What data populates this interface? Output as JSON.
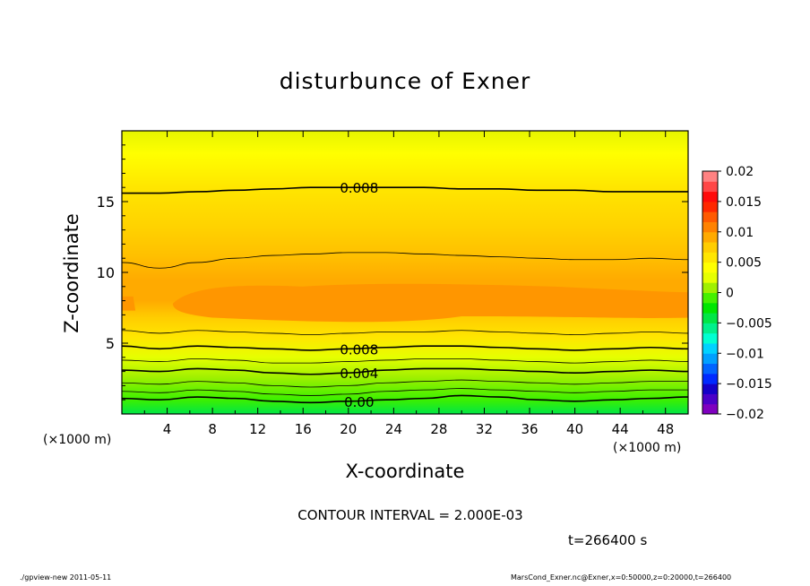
{
  "chart_data": {
    "type": "heatmap",
    "title": "disturbunce of Exner",
    "xlabel": "X-coordinate",
    "ylabel": "Z-coordinate",
    "x_unit_left": "(×1000 m)",
    "x_unit_right": "(×1000 m)",
    "xlim": [
      0,
      50
    ],
    "ylim": [
      0,
      20
    ],
    "x_ticks": [
      4,
      8,
      12,
      16,
      20,
      24,
      28,
      32,
      36,
      40,
      44,
      48
    ],
    "y_ticks": [
      5,
      10,
      15
    ],
    "x_tick_labels": [
      "4",
      "8",
      "12",
      "16",
      "20",
      "24",
      "28",
      "32",
      "36",
      "40",
      "44",
      "48"
    ],
    "y_tick_labels": [
      "5",
      "10",
      "15"
    ],
    "colorbar": {
      "range": [
        -0.02,
        0.02
      ],
      "tick_labels": [
        "0.02",
        "0.015",
        "0.01",
        "0.005",
        "0",
        "−0.005",
        "−0.01",
        "−0.015",
        "−0.02"
      ],
      "colors": [
        "#7f00bf",
        "#4b00c8",
        "#1400c8",
        "#002aff",
        "#0064ff",
        "#00a0ff",
        "#00d2ff",
        "#00ffd2",
        "#00f08c",
        "#00e646",
        "#00e600",
        "#46f000",
        "#a0f000",
        "#e6ff00",
        "#ffff00",
        "#ffe600",
        "#ffcd00",
        "#ffaa00",
        "#ff8200",
        "#ff5a00",
        "#ff2800",
        "#ff0a0a",
        "#ff4646",
        "#ff8282"
      ]
    },
    "contours": [
      {
        "label": "0.00",
        "z": [
          1.1,
          1.0,
          1.2,
          1.1,
          0.9,
          0.8,
          0.9,
          1.0,
          1.1,
          1.3,
          1.2,
          1.0,
          0.9,
          1.0,
          1.1,
          1.2
        ]
      },
      {
        "label": "",
        "z": [
          1.6,
          1.5,
          1.7,
          1.6,
          1.4,
          1.3,
          1.4,
          1.6,
          1.7,
          1.8,
          1.7,
          1.6,
          1.5,
          1.6,
          1.7,
          1.7
        ]
      },
      {
        "label": "",
        "z": [
          2.2,
          2.1,
          2.3,
          2.2,
          2.0,
          1.9,
          2.0,
          2.2,
          2.3,
          2.4,
          2.3,
          2.2,
          2.1,
          2.2,
          2.3,
          2.3
        ]
      },
      {
        "label": "0.004",
        "z": [
          3.1,
          3.0,
          3.2,
          3.1,
          2.9,
          2.8,
          2.9,
          3.1,
          3.2,
          3.2,
          3.1,
          3.0,
          2.9,
          3.0,
          3.1,
          3.0
        ]
      },
      {
        "label": "",
        "z": [
          3.8,
          3.7,
          3.9,
          3.8,
          3.6,
          3.6,
          3.7,
          3.8,
          3.9,
          3.9,
          3.8,
          3.7,
          3.6,
          3.7,
          3.8,
          3.7
        ]
      },
      {
        "label": "0.008",
        "z": [
          4.8,
          4.6,
          4.8,
          4.7,
          4.6,
          4.5,
          4.6,
          4.7,
          4.8,
          4.8,
          4.7,
          4.6,
          4.5,
          4.6,
          4.7,
          4.6
        ]
      },
      {
        "label": "",
        "z": [
          5.9,
          5.7,
          5.9,
          5.8,
          5.7,
          5.6,
          5.7,
          5.8,
          5.8,
          5.9,
          5.8,
          5.7,
          5.6,
          5.7,
          5.8,
          5.7
        ]
      },
      {
        "label": "",
        "z": [
          10.7,
          10.3,
          10.7,
          11.0,
          11.2,
          11.3,
          11.4,
          11.4,
          11.3,
          11.2,
          11.1,
          11.0,
          10.9,
          10.9,
          11.0,
          10.9
        ]
      },
      {
        "label": "0.008",
        "z": [
          15.6,
          15.6,
          15.7,
          15.8,
          15.9,
          16.0,
          16.0,
          16.0,
          16.0,
          15.9,
          15.9,
          15.8,
          15.8,
          15.7,
          15.7,
          15.7
        ]
      }
    ],
    "contour_interval": "CONTOUR INTERVAL = 2.000E-03",
    "time": "t=266400 s"
  },
  "footer": {
    "left": "./gpview-new   2011-05-11",
    "right": "MarsCond_Exner.nc@Exner,x=0:50000,z=0:20000,t=266400"
  }
}
